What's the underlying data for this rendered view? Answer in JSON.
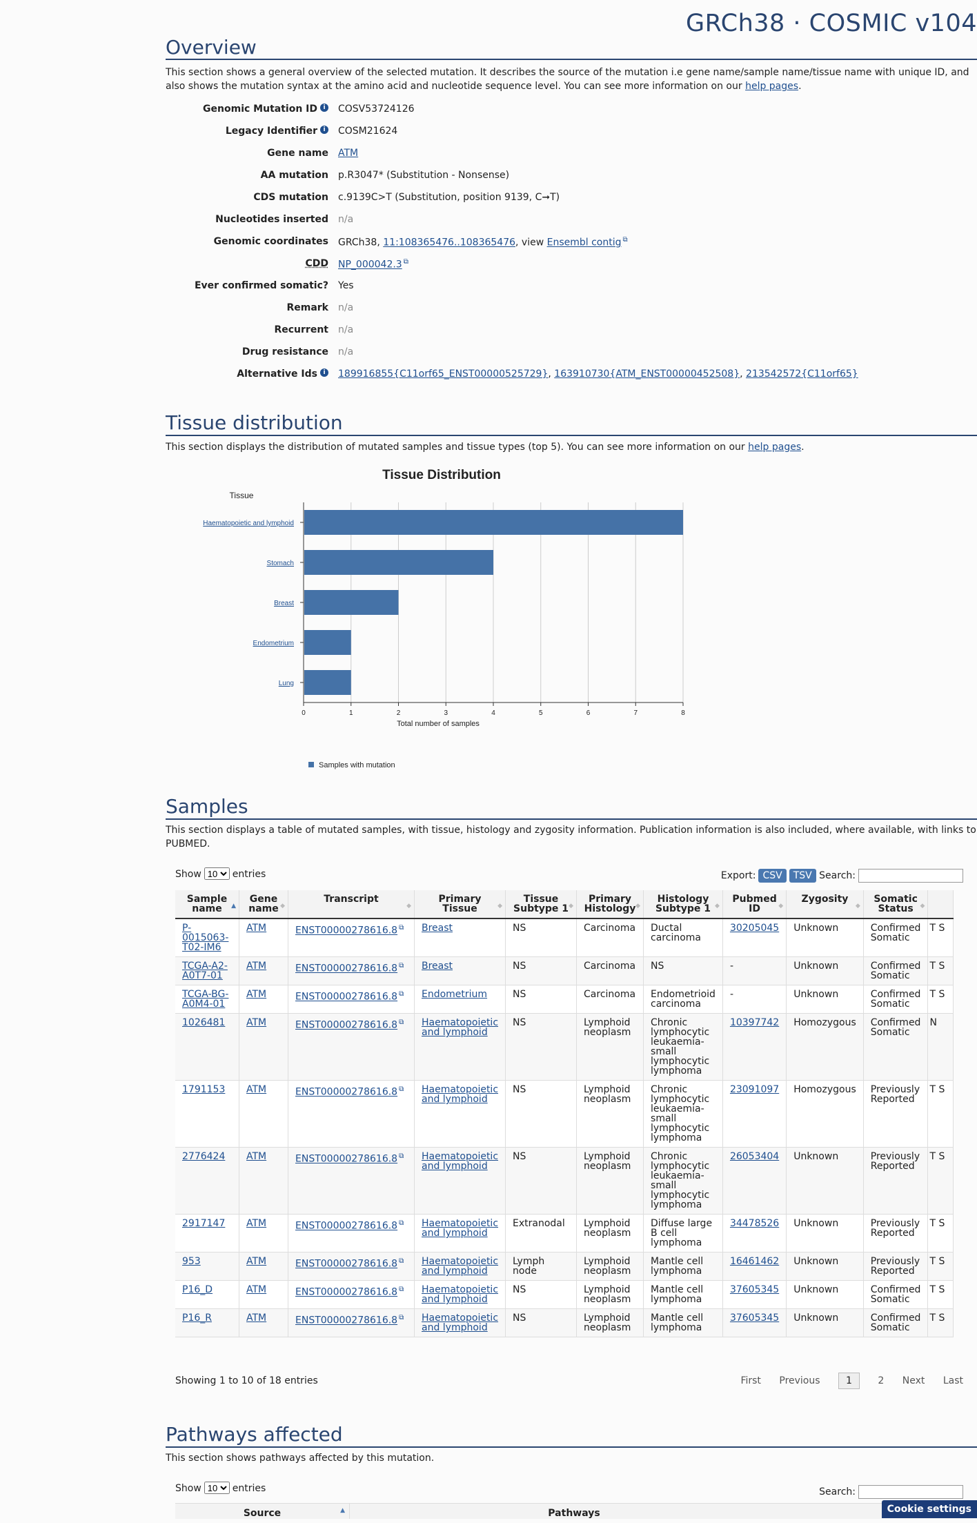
{
  "header": {
    "title": "GRCh38 · COSMIC v104"
  },
  "overview": {
    "heading": "Overview",
    "description": "This section shows a general overview of the selected mutation. It describes the source of the mutation i.e gene name/sample name/tissue name with unique ID, and also shows the mutation syntax at the amino acid and nucleotide sequence level. You can see more information on our",
    "help_link": "help pages",
    "fields": {
      "genomic_mutation_id": {
        "label": "Genomic Mutation ID",
        "value": "COSV53724126"
      },
      "legacy_identifier": {
        "label": "Legacy Identifier",
        "value": "COSM21624"
      },
      "gene_name": {
        "label": "Gene name",
        "value": "ATM"
      },
      "aa_mutation": {
        "label": "AA mutation",
        "value": "p.R3047* (Substitution - Nonsense)"
      },
      "cds_mutation": {
        "label": "CDS mutation",
        "value": "c.9139C>T (Substitution, position 9139, C➞T)"
      },
      "nucleotides_inserted": {
        "label": "Nucleotides inserted",
        "value": "n/a"
      },
      "genomic_coordinates": {
        "label": "Genomic coordinates",
        "prefix": "GRCh38,",
        "coord_link": "11:108365476..108365476",
        "mid": ", view",
        "contig_link": "Ensembl contig"
      },
      "cdd": {
        "label": "CDD",
        "value": "NP_000042.3"
      },
      "ever_confirmed_somatic": {
        "label": "Ever confirmed somatic?",
        "value": "Yes"
      },
      "remark": {
        "label": "Remark",
        "value": "n/a"
      },
      "recurrent": {
        "label": "Recurrent",
        "value": "n/a"
      },
      "drug_resistance": {
        "label": "Drug resistance",
        "value": "n/a"
      },
      "alternative_ids": {
        "label": "Alternative Ids",
        "ids": [
          "189916855{C11orf65_ENST00000525729}",
          "163910730{ATM_ENST00000452508}",
          "213542572{C11orf65}"
        ]
      }
    }
  },
  "tissue": {
    "heading": "Tissue distribution",
    "description": "This section displays the distribution of mutated samples and tissue types (top 5). You can see more information on our",
    "help_link": "help pages"
  },
  "chart_data": {
    "type": "bar",
    "orientation": "horizontal",
    "title": "Tissue Distribution",
    "ylabel": "Tissue",
    "xlabel": "Total number of samples",
    "categories": [
      "Haematopoietic and lymphoid",
      "Stomach",
      "Breast",
      "Endometrium",
      "Lung"
    ],
    "series": [
      {
        "name": "Samples with mutation",
        "values": [
          8,
          4,
          2,
          1,
          1
        ]
      }
    ],
    "xlim": [
      0,
      8
    ],
    "ticks": [
      "0",
      "1",
      "2",
      "3",
      "4",
      "5",
      "6",
      "7",
      "8"
    ],
    "grid": true,
    "legend": "bottom-left",
    "color": "#4572a7"
  },
  "samples": {
    "heading": "Samples",
    "description": "This section displays a table of mutated samples, with tissue, histology and zygosity information. Publication information is also included, where available, with links to PUBMED.",
    "show_label": "Show",
    "entries_value": "10",
    "entries_label": "entries",
    "export_label": "Export:",
    "csv": "CSV",
    "tsv": "TSV",
    "search_label": "Search:",
    "columns": [
      "Sample name",
      "Gene name",
      "Transcript",
      "Primary Tissue",
      "Tissue Subtype 1",
      "Primary Histology",
      "Histology Subtype 1",
      "Pubmed ID",
      "Zygosity",
      "Somatic Status"
    ],
    "rows": [
      {
        "sample": "P-0015063-T02-IM6",
        "gene": "ATM",
        "transcript": "ENST00000278616.8",
        "tissue": "Breast",
        "subtype": "NS",
        "histology": "Carcinoma",
        "hsub": "Ductal carcinoma",
        "pubmed": "30205045",
        "zygosity": "Unknown",
        "status": "Confirmed Somatic",
        "extra": "T S"
      },
      {
        "sample": "TCGA-A2-A0T7-01",
        "gene": "ATM",
        "transcript": "ENST00000278616.8",
        "tissue": "Breast",
        "subtype": "NS",
        "histology": "Carcinoma",
        "hsub": "NS",
        "pubmed": "-",
        "zygosity": "Unknown",
        "status": "Confirmed Somatic",
        "extra": "T S"
      },
      {
        "sample": "TCGA-BG-A0M4-01",
        "gene": "ATM",
        "transcript": "ENST00000278616.8",
        "tissue": "Endometrium",
        "subtype": "NS",
        "histology": "Carcinoma",
        "hsub": "Endometrioid carcinoma",
        "pubmed": "-",
        "zygosity": "Unknown",
        "status": "Confirmed Somatic",
        "extra": "T S"
      },
      {
        "sample": "1026481",
        "gene": "ATM",
        "transcript": "ENST00000278616.8",
        "tissue": "Haematopoietic and lymphoid",
        "subtype": "NS",
        "histology": "Lymphoid neoplasm",
        "hsub": "Chronic lymphocytic leukaemia-small lymphocytic lymphoma",
        "pubmed": "10397742",
        "zygosity": "Homozygous",
        "status": "Confirmed Somatic",
        "extra": "N"
      },
      {
        "sample": "1791153",
        "gene": "ATM",
        "transcript": "ENST00000278616.8",
        "tissue": "Haematopoietic and lymphoid",
        "subtype": "NS",
        "histology": "Lymphoid neoplasm",
        "hsub": "Chronic lymphocytic leukaemia-small lymphocytic lymphoma",
        "pubmed": "23091097",
        "zygosity": "Homozygous",
        "status": "Previously Reported",
        "extra": "T S"
      },
      {
        "sample": "2776424",
        "gene": "ATM",
        "transcript": "ENST00000278616.8",
        "tissue": "Haematopoietic and lymphoid",
        "subtype": "NS",
        "histology": "Lymphoid neoplasm",
        "hsub": "Chronic lymphocytic leukaemia-small lymphocytic lymphoma",
        "pubmed": "26053404",
        "zygosity": "Unknown",
        "status": "Previously Reported",
        "extra": "T S"
      },
      {
        "sample": "2917147",
        "gene": "ATM",
        "transcript": "ENST00000278616.8",
        "tissue": "Haematopoietic and lymphoid",
        "subtype": "Extranodal",
        "histology": "Lymphoid neoplasm",
        "hsub": "Diffuse large B cell lymphoma",
        "pubmed": "34478526",
        "zygosity": "Unknown",
        "status": "Previously Reported",
        "extra": "T S"
      },
      {
        "sample": "953",
        "gene": "ATM",
        "transcript": "ENST00000278616.8",
        "tissue": "Haematopoietic and lymphoid",
        "subtype": "Lymph node",
        "histology": "Lymphoid neoplasm",
        "hsub": "Mantle cell lymphoma",
        "pubmed": "16461462",
        "zygosity": "Unknown",
        "status": "Previously Reported",
        "extra": "T S"
      },
      {
        "sample": "P16_D",
        "gene": "ATM",
        "transcript": "ENST00000278616.8",
        "tissue": "Haematopoietic and lymphoid",
        "subtype": "NS",
        "histology": "Lymphoid neoplasm",
        "hsub": "Mantle cell lymphoma",
        "pubmed": "37605345",
        "zygosity": "Unknown",
        "status": "Confirmed Somatic",
        "extra": "T S"
      },
      {
        "sample": "P16_R",
        "gene": "ATM",
        "transcript": "ENST00000278616.8",
        "tissue": "Haematopoietic and lymphoid",
        "subtype": "NS",
        "histology": "Lymphoid neoplasm",
        "hsub": "Mantle cell lymphoma",
        "pubmed": "37605345",
        "zygosity": "Unknown",
        "status": "Confirmed Somatic",
        "extra": "T S"
      }
    ],
    "info": "Showing 1 to 10 of 18 entries",
    "pager": {
      "first": "First",
      "previous": "Previous",
      "page1": "1",
      "page2": "2",
      "next": "Next",
      "last": "Last"
    }
  },
  "pathways": {
    "heading": "Pathways affected",
    "description": "This section shows pathways affected by this mutation.",
    "show_label": "Show",
    "entries_value": "10",
    "entries_label": "entries",
    "search_label": "Search:",
    "col_source": "Source",
    "col_pathways": "Pathways"
  },
  "cookie": {
    "label": "Cookie settings"
  }
}
